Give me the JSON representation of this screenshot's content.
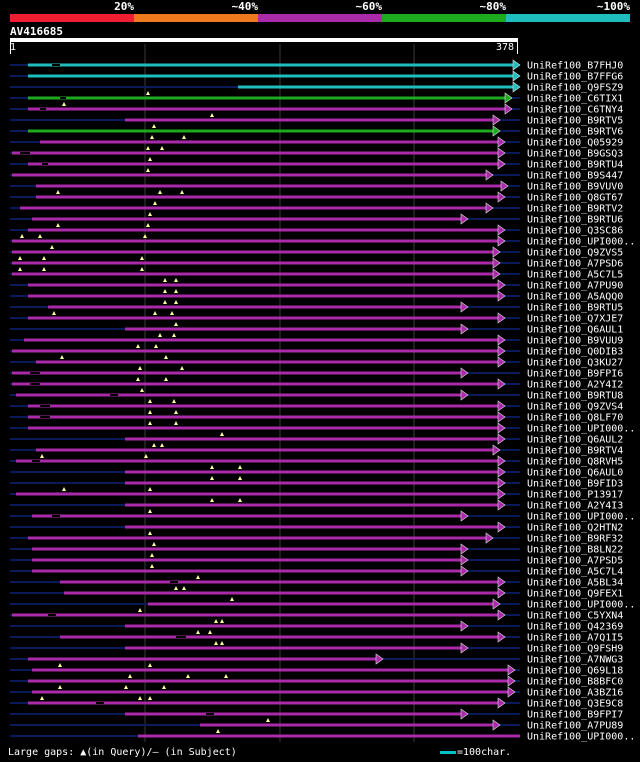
{
  "legend": [
    {
      "label": "20%",
      "color": "#ef1e32"
    },
    {
      "label": "~40%",
      "color": "#ef7a1e"
    },
    {
      "label": "~60%",
      "color": "#aa2aaa"
    },
    {
      "label": "~80%",
      "color": "#1eaa1e"
    },
    {
      "label": "~100%",
      "color": "#1ebebe"
    }
  ],
  "query": {
    "name": "AV416685",
    "start": "1",
    "end": "378"
  },
  "footer": {
    "gaps": "Large gaps: ▲(in Query)/— (in Subject)",
    "scale": "=100char."
  },
  "hits": [
    {
      "name": "UniRef100_B7FHJ0",
      "color": "#1ebebe",
      "qs": 28,
      "qe": 520,
      "arrow": true,
      "gaps": [],
      "sg": [
        [
          52,
          60
        ]
      ]
    },
    {
      "name": "UniRef100_B7FFG6",
      "color": "#1ebebe",
      "qs": 28,
      "qe": 520,
      "arrow": true,
      "gaps": [],
      "sg": []
    },
    {
      "name": "UniRef100_Q9FSZ9",
      "color": "#1ebebe",
      "qs": 238,
      "qe": 520,
      "arrow": true,
      "gaps": [],
      "sg": []
    },
    {
      "name": "UniRef100_C6TIX1",
      "color": "#1eaa1e",
      "qs": 28,
      "qe": 512,
      "arrow": true,
      "gaps": [
        148
      ],
      "sg": [
        [
          60,
          66
        ]
      ]
    },
    {
      "name": "UniRef100_C6TNY4",
      "color": "#aa2aaa",
      "qs": 28,
      "qe": 512,
      "arrow": true,
      "gaps": [
        64
      ],
      "sg": [
        [
          40,
          46
        ]
      ]
    },
    {
      "name": "UniRef100_B9RTV5",
      "color": "#aa2aaa",
      "qs": 125,
      "qe": 500,
      "arrow": true,
      "gaps": [
        212
      ],
      "sg": []
    },
    {
      "name": "UniRef100_B9RTV6",
      "color": "#1eaa1e",
      "qs": 28,
      "qe": 500,
      "arrow": true,
      "gaps": [
        154
      ],
      "sg": []
    },
    {
      "name": "UniRef100_Q05929",
      "color": "#aa2aaa",
      "qs": 40,
      "qe": 505,
      "arrow": true,
      "gaps": [
        152,
        184
      ],
      "sg": []
    },
    {
      "name": "UniRef100_B9GSQ3",
      "color": "#aa2aaa",
      "qs": 12,
      "qe": 505,
      "arrow": true,
      "gaps": [
        148,
        162
      ],
      "sg": [
        [
          20,
          30
        ]
      ]
    },
    {
      "name": "UniRef100_B9RTU4",
      "color": "#aa2aaa",
      "qs": 28,
      "qe": 505,
      "arrow": true,
      "gaps": [
        150
      ],
      "sg": [
        [
          42,
          48
        ]
      ]
    },
    {
      "name": "UniRef100_B9S447",
      "color": "#aa2aaa",
      "qs": 12,
      "qe": 493,
      "arrow": true,
      "gaps": [
        148
      ],
      "sg": []
    },
    {
      "name": "UniRef100_B9VUV0",
      "color": "#aa2aaa",
      "qs": 36,
      "qe": 508,
      "arrow": true,
      "gaps": [],
      "sg": []
    },
    {
      "name": "UniRef100_Q8GT67",
      "color": "#aa2aaa",
      "qs": 36,
      "qe": 505,
      "arrow": true,
      "gaps": [
        58,
        160,
        182
      ],
      "sg": []
    },
    {
      "name": "UniRef100_B9RTV2",
      "color": "#aa2aaa",
      "qs": 20,
      "qe": 493,
      "arrow": true,
      "gaps": [
        155
      ],
      "sg": []
    },
    {
      "name": "UniRef100_B9RTU6",
      "color": "#aa2aaa",
      "qs": 32,
      "qe": 468,
      "arrow": true,
      "gaps": [
        150
      ],
      "sg": []
    },
    {
      "name": "UniRef100_Q3SC86",
      "color": "#aa2aaa",
      "qs": 28,
      "qe": 505,
      "arrow": true,
      "gaps": [
        58,
        148
      ],
      "sg": []
    },
    {
      "name": "UniRef100_UPI000..",
      "color": "#aa2aaa",
      "qs": 12,
      "qe": 505,
      "arrow": true,
      "gaps": [
        22,
        40,
        145
      ],
      "sg": []
    },
    {
      "name": "UniRef100_Q9ZVS5",
      "color": "#aa2aaa",
      "qs": 12,
      "qe": 500,
      "arrow": true,
      "gaps": [
        52
      ],
      "sg": []
    },
    {
      "name": "UniRef100_A7PSD6",
      "color": "#aa2aaa",
      "qs": 12,
      "qe": 500,
      "arrow": true,
      "gaps": [
        20,
        44,
        142
      ],
      "sg": []
    },
    {
      "name": "UniRef100_A5C7L5",
      "color": "#aa2aaa",
      "qs": 12,
      "qe": 500,
      "arrow": true,
      "gaps": [
        20,
        44,
        142
      ],
      "sg": []
    },
    {
      "name": "UniRef100_A7PU90",
      "color": "#aa2aaa",
      "qs": 28,
      "qe": 505,
      "arrow": true,
      "gaps": [
        165,
        176
      ],
      "sg": []
    },
    {
      "name": "UniRef100_A5AQQ0",
      "color": "#aa2aaa",
      "qs": 28,
      "qe": 505,
      "arrow": true,
      "gaps": [
        165,
        176
      ],
      "sg": []
    },
    {
      "name": "UniRef100_B9RTU5",
      "color": "#aa2aaa",
      "qs": 48,
      "qe": 468,
      "arrow": true,
      "gaps": [
        165,
        176
      ],
      "sg": []
    },
    {
      "name": "UniRef100_Q7XJE7",
      "color": "#aa2aaa",
      "qs": 28,
      "qe": 505,
      "arrow": true,
      "gaps": [
        54,
        155,
        172
      ],
      "sg": []
    },
    {
      "name": "UniRef100_Q6AUL1",
      "color": "#aa2aaa",
      "qs": 125,
      "qe": 468,
      "arrow": true,
      "gaps": [
        176
      ],
      "sg": []
    },
    {
      "name": "UniRef100_B9VUU9",
      "color": "#aa2aaa",
      "qs": 24,
      "qe": 505,
      "arrow": true,
      "gaps": [
        160,
        174
      ],
      "sg": []
    },
    {
      "name": "UniRef100_Q0DIB3",
      "color": "#aa2aaa",
      "qs": 12,
      "qe": 505,
      "arrow": true,
      "gaps": [
        138,
        156
      ],
      "sg": []
    },
    {
      "name": "UniRef100_Q3KU27",
      "color": "#aa2aaa",
      "qs": 36,
      "qe": 505,
      "arrow": true,
      "gaps": [
        62,
        166
      ],
      "sg": []
    },
    {
      "name": "UniRef100_B9FPI6",
      "color": "#aa2aaa",
      "qs": 12,
      "qe": 468,
      "arrow": true,
      "gaps": [
        140,
        182
      ],
      "sg": [
        [
          30,
          40
        ]
      ]
    },
    {
      "name": "UniRef100_A2Y4I2",
      "color": "#aa2aaa",
      "qs": 12,
      "qe": 505,
      "arrow": true,
      "gaps": [
        138,
        166
      ],
      "sg": [
        [
          30,
          40
        ]
      ]
    },
    {
      "name": "UniRef100_B9RTU8",
      "color": "#aa2aaa",
      "qs": 16,
      "qe": 468,
      "arrow": true,
      "gaps": [
        142
      ],
      "sg": [
        [
          110,
          118
        ]
      ]
    },
    {
      "name": "UniRef100_Q9ZVS4",
      "color": "#aa2aaa",
      "qs": 28,
      "qe": 505,
      "arrow": true,
      "gaps": [
        150,
        174
      ],
      "sg": [
        [
          40,
          50
        ]
      ]
    },
    {
      "name": "UniRef100_Q8LF70",
      "color": "#aa2aaa",
      "qs": 28,
      "qe": 505,
      "arrow": true,
      "gaps": [
        150,
        176
      ],
      "sg": [
        [
          40,
          50
        ]
      ]
    },
    {
      "name": "UniRef100_UPI000..",
      "color": "#aa2aaa",
      "qs": 28,
      "qe": 505,
      "arrow": true,
      "gaps": [
        150,
        176
      ],
      "sg": []
    },
    {
      "name": "UniRef100_Q6AUL2",
      "color": "#aa2aaa",
      "qs": 125,
      "qe": 505,
      "arrow": true,
      "gaps": [
        222
      ],
      "sg": []
    },
    {
      "name": "UniRef100_B9RTV4",
      "color": "#aa2aaa",
      "qs": 36,
      "qe": 500,
      "arrow": true,
      "gaps": [
        154,
        162
      ],
      "sg": []
    },
    {
      "name": "UniRef100_Q8RVH5",
      "color": "#aa2aaa",
      "qs": 16,
      "qe": 505,
      "arrow": true,
      "gaps": [
        42,
        146
      ],
      "sg": [
        [
          32,
          40
        ]
      ]
    },
    {
      "name": "UniRef100_Q6AUL0",
      "color": "#aa2aaa",
      "qs": 125,
      "qe": 505,
      "arrow": true,
      "gaps": [
        212,
        240
      ],
      "sg": []
    },
    {
      "name": "UniRef100_B9FID3",
      "color": "#aa2aaa",
      "qs": 125,
      "qe": 505,
      "arrow": true,
      "gaps": [
        212,
        240
      ],
      "sg": []
    },
    {
      "name": "UniRef100_P13917",
      "color": "#aa2aaa",
      "qs": 16,
      "qe": 505,
      "arrow": true,
      "gaps": [
        64,
        150
      ],
      "sg": []
    },
    {
      "name": "UniRef100_A2Y4I3",
      "color": "#aa2aaa",
      "qs": 125,
      "qe": 505,
      "arrow": true,
      "gaps": [
        212,
        240
      ],
      "sg": []
    },
    {
      "name": "UniRef100_UPI000..",
      "color": "#aa2aaa",
      "qs": 32,
      "qe": 468,
      "arrow": true,
      "gaps": [
        150
      ],
      "sg": [
        [
          52,
          60
        ]
      ]
    },
    {
      "name": "UniRef100_Q2HTN2",
      "color": "#aa2aaa",
      "qs": 125,
      "qe": 505,
      "arrow": true,
      "gaps": [],
      "sg": []
    },
    {
      "name": "UniRef100_B9RF32",
      "color": "#aa2aaa",
      "qs": 28,
      "qe": 493,
      "arrow": true,
      "gaps": [
        150
      ],
      "sg": []
    },
    {
      "name": "UniRef100_B8LN22",
      "color": "#aa2aaa",
      "qs": 32,
      "qe": 468,
      "arrow": true,
      "gaps": [
        154
      ],
      "sg": []
    },
    {
      "name": "UniRef100_A7PSD5",
      "color": "#aa2aaa",
      "qs": 32,
      "qe": 468,
      "arrow": true,
      "gaps": [
        152
      ],
      "sg": []
    },
    {
      "name": "UniRef100_A5C7L4",
      "color": "#aa2aaa",
      "qs": 32,
      "qe": 468,
      "arrow": true,
      "gaps": [
        152
      ],
      "sg": []
    },
    {
      "name": "UniRef100_A5BL34",
      "color": "#aa2aaa",
      "qs": 60,
      "qe": 505,
      "arrow": true,
      "gaps": [
        198
      ],
      "sg": [
        [
          170,
          178
        ]
      ]
    },
    {
      "name": "UniRef100_Q9FEX1",
      "color": "#aa2aaa",
      "qs": 64,
      "qe": 505,
      "arrow": true,
      "gaps": [
        176,
        184
      ],
      "sg": []
    },
    {
      "name": "UniRef100_UPI000..",
      "color": "#aa2aaa",
      "qs": 148,
      "qe": 500,
      "arrow": true,
      "gaps": [
        232
      ],
      "sg": []
    },
    {
      "name": "UniRef100_C5YXN4",
      "color": "#aa2aaa",
      "qs": 12,
      "qe": 505,
      "arrow": true,
      "gaps": [
        140
      ],
      "sg": [
        [
          48,
          56
        ]
      ]
    },
    {
      "name": "UniRef100_Q42369",
      "color": "#aa2aaa",
      "qs": 125,
      "qe": 468,
      "arrow": true,
      "gaps": [
        216,
        222
      ],
      "sg": []
    },
    {
      "name": "UniRef100_A7Q1I5",
      "color": "#aa2aaa",
      "qs": 60,
      "qe": 505,
      "arrow": true,
      "gaps": [
        198,
        210
      ],
      "sg": [
        [
          176,
          186
        ]
      ]
    },
    {
      "name": "UniRef100_Q9FSH9",
      "color": "#aa2aaa",
      "qs": 125,
      "qe": 468,
      "arrow": true,
      "gaps": [
        216,
        222
      ],
      "sg": []
    },
    {
      "name": "UniRef100_A7NWG3",
      "color": "#aa2aaa",
      "qs": 28,
      "qe": 383,
      "arrow": true,
      "gaps": [],
      "sg": []
    },
    {
      "name": "UniRef100_Q69L18",
      "color": "#aa2aaa",
      "qs": 32,
      "qe": 515,
      "arrow": true,
      "gaps": [
        60,
        150
      ],
      "sg": []
    },
    {
      "name": "UniRef100_B8BFC0",
      "color": "#aa2aaa",
      "qs": 28,
      "qe": 515,
      "arrow": true,
      "gaps": [
        130,
        188,
        226
      ],
      "sg": []
    },
    {
      "name": "UniRef100_A3BZ16",
      "color": "#aa2aaa",
      "qs": 32,
      "qe": 515,
      "arrow": true,
      "gaps": [
        60,
        126,
        164
      ],
      "sg": []
    },
    {
      "name": "UniRef100_Q3E9C8",
      "color": "#aa2aaa",
      "qs": 28,
      "qe": 505,
      "arrow": true,
      "gaps": [
        42,
        140,
        150
      ],
      "sg": [
        [
          96,
          104
        ]
      ]
    },
    {
      "name": "UniRef100_B9FPI7",
      "color": "#aa2aaa",
      "qs": 125,
      "qe": 468,
      "arrow": true,
      "gaps": [],
      "sg": [
        [
          206,
          214
        ]
      ]
    },
    {
      "name": "UniRef100_A7PU89",
      "color": "#aa2aaa",
      "qs": 200,
      "qe": 500,
      "arrow": true,
      "gaps": [
        268
      ],
      "sg": []
    },
    {
      "name": "UniRef100_UPI000..",
      "color": "#aa2aaa",
      "qs": 138,
      "qe": 520,
      "arrow": false,
      "gaps": [
        218
      ],
      "sg": []
    }
  ]
}
